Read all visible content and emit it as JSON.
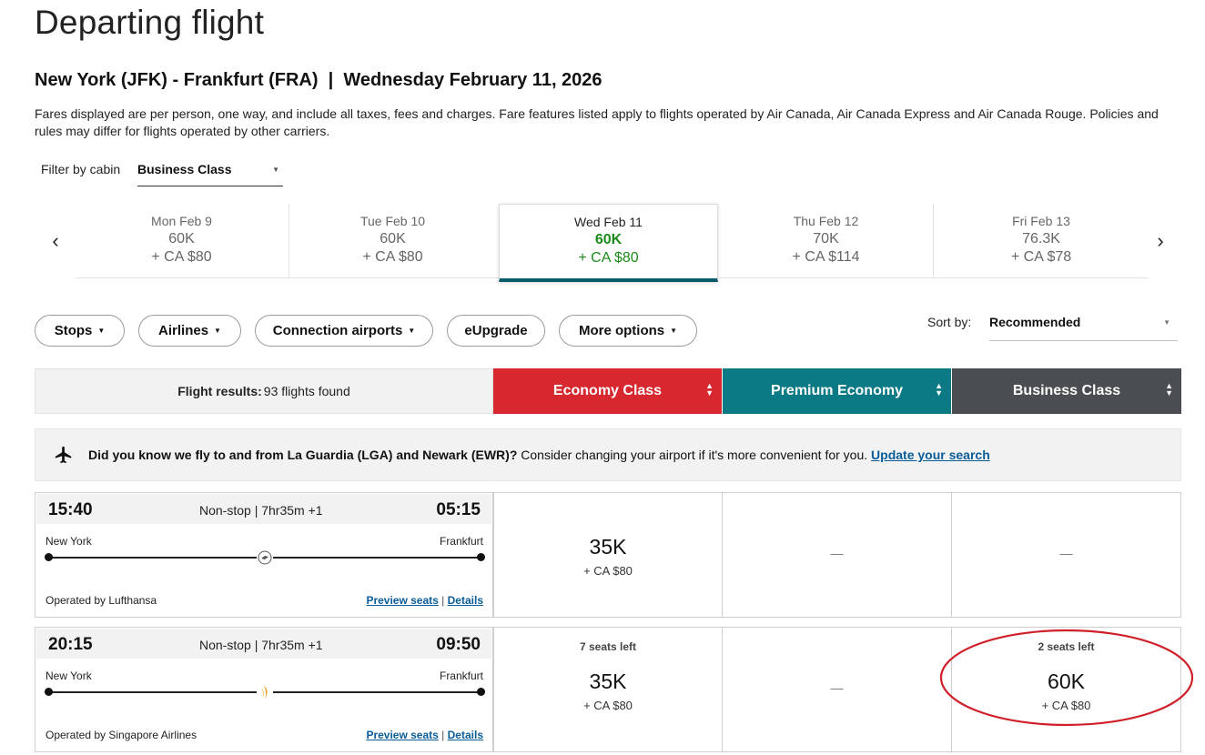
{
  "page": {
    "title": "Departing flight",
    "route": "New York (JFK) - Frankfurt (FRA)  |  Wednesday February 11, 2026",
    "fare_note": "Fares displayed are per person, one way, and include all taxes, fees and charges. Fare features listed apply to flights operated by Air Canada, Air Canada Express and Air Canada Rouge. Policies and rules may differ for flights operated by other carriers."
  },
  "filter": {
    "label": "Filter by cabin",
    "value": "Business Class"
  },
  "dates": [
    {
      "day": "Mon Feb 9",
      "points": "60K",
      "cash": "+ CA $80",
      "selected": false
    },
    {
      "day": "Tue Feb 10",
      "points": "60K",
      "cash": "+ CA $80",
      "selected": false
    },
    {
      "day": "Wed Feb 11",
      "points": "60K",
      "cash": "+ CA $80",
      "selected": true
    },
    {
      "day": "Thu Feb 12",
      "points": "70K",
      "cash": "+ CA $114",
      "selected": false
    },
    {
      "day": "Fri Feb 13",
      "points": "76.3K",
      "cash": "+ CA $78",
      "selected": false
    }
  ],
  "filters": {
    "stops": "Stops",
    "airlines": "Airlines",
    "connection_airports": "Connection airports",
    "eupgrade": "eUpgrade",
    "more_options": "More options"
  },
  "sort": {
    "label": "Sort by:",
    "value": "Recommended"
  },
  "results": {
    "label": "Flight results:",
    "count": "93 flights found",
    "cabins": {
      "economy": "Economy Class",
      "premium": "Premium Economy",
      "business": "Business Class"
    }
  },
  "banner": {
    "bold": "Did you know we fly to and from La Guardia (LGA) and Newark (EWR)?",
    "text": " Consider changing your airport if it's more convenient for you. ",
    "link": "Update your search"
  },
  "flights": [
    {
      "depart": "15:40",
      "arrive": "05:15",
      "duration": "Non-stop | 7hr35m +1",
      "from": "New York",
      "to": "Frankfurt",
      "operated": "Operated by Lufthansa",
      "preview": "Preview seats",
      "sep": "|",
      "details": "Details",
      "economy": {
        "seats": "",
        "points": "35K",
        "cash": "+ CA $80"
      },
      "premium": "—",
      "business": "—"
    },
    {
      "depart": "20:15",
      "arrive": "09:50",
      "duration": "Non-stop | 7hr35m +1",
      "from": "New York",
      "to": "Frankfurt",
      "operated": "Operated by Singapore Airlines",
      "preview": "Preview seats",
      "sep": "|",
      "details": "Details",
      "economy": {
        "seats": "7 seats left",
        "points": "35K",
        "cash": "+ CA $80"
      },
      "premium": "—",
      "business": {
        "seats": "2 seats left",
        "points": "60K",
        "cash": "+ CA $80"
      }
    }
  ],
  "colors": {
    "economy": "#d8282f",
    "premium": "#0b7a85",
    "business": "#4a4d51",
    "selected_price": "#1b8a1b",
    "annotation": "#d0202a"
  }
}
